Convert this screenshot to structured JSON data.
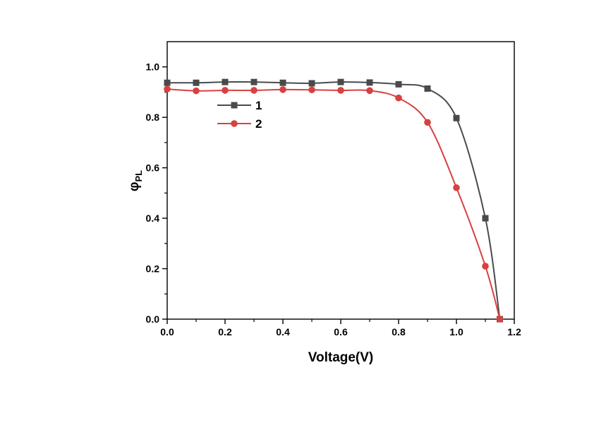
{
  "chart_data": {
    "type": "line",
    "xlabel": "Voltage(V)",
    "ylabel": "φ",
    "ylabel_sub": "PL",
    "xlim": [
      0.0,
      1.2
    ],
    "ylim": [
      0.0,
      1.1
    ],
    "x_ticks": [
      "0.0",
      "0.2",
      "0.4",
      "0.6",
      "0.8",
      "1.0",
      "1.2"
    ],
    "y_ticks": [
      "0.0",
      "0.2",
      "0.4",
      "0.6",
      "0.8",
      "1.0"
    ],
    "grid": false,
    "legend_position": "top-left",
    "series": [
      {
        "name": "1",
        "color": "#4a4a4a",
        "marker": "square",
        "x": [
          0.0,
          0.1,
          0.2,
          0.3,
          0.4,
          0.5,
          0.6,
          0.7,
          0.8,
          0.9,
          1.0,
          1.1,
          1.15
        ],
        "y": [
          0.937,
          0.937,
          0.94,
          0.94,
          0.937,
          0.935,
          0.94,
          0.938,
          0.931,
          0.914,
          0.797,
          0.4,
          0.0
        ]
      },
      {
        "name": "2",
        "color": "#d94040",
        "marker": "circle",
        "x": [
          0.0,
          0.1,
          0.2,
          0.3,
          0.4,
          0.5,
          0.6,
          0.7,
          0.8,
          0.9,
          1.0,
          1.1,
          1.15
        ],
        "y": [
          0.912,
          0.905,
          0.907,
          0.907,
          0.91,
          0.909,
          0.907,
          0.906,
          0.877,
          0.78,
          0.521,
          0.21,
          0.0
        ]
      }
    ]
  }
}
